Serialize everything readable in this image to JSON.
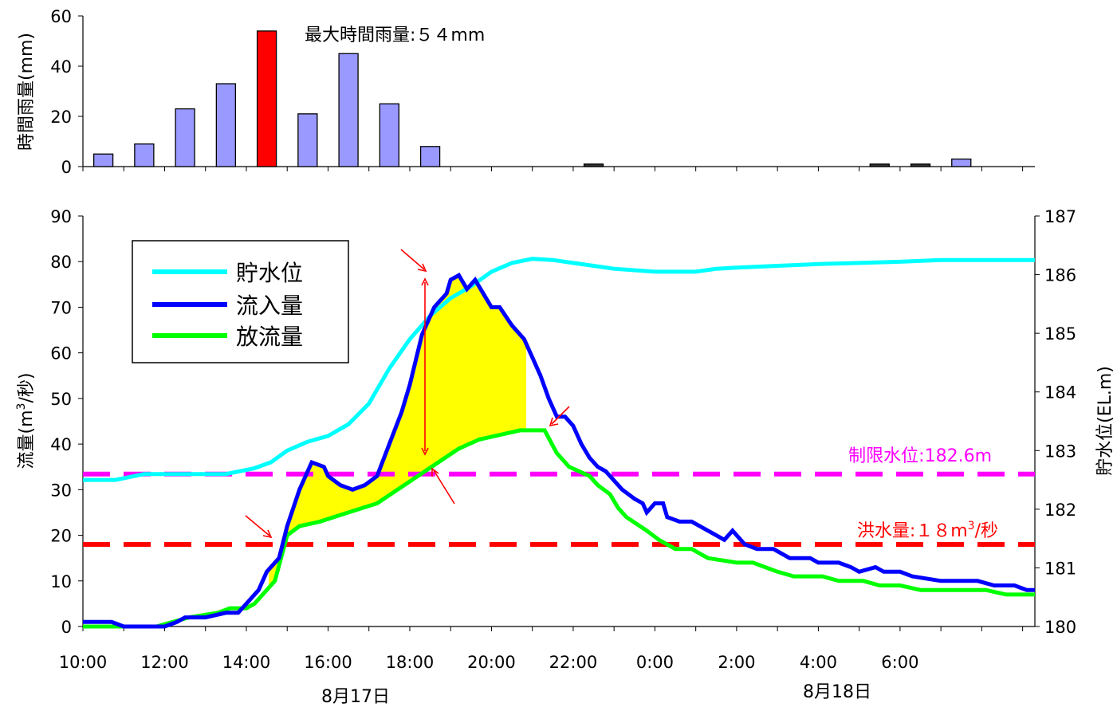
{
  "chart_data": [
    {
      "type": "bar",
      "ylabel": "時間雨量(mm)",
      "ylim": [
        0,
        60
      ],
      "yticks": [
        0,
        20,
        40,
        60
      ],
      "bars": [
        {
          "time": "10:30",
          "value": 5
        },
        {
          "time": "11:30",
          "value": 9
        },
        {
          "time": "12:30",
          "value": 23
        },
        {
          "time": "13:30",
          "value": 33
        },
        {
          "time": "14:30",
          "value": 54,
          "highlight": true
        },
        {
          "time": "15:30",
          "value": 21
        },
        {
          "time": "16:30",
          "value": 45
        },
        {
          "time": "17:30",
          "value": 25
        },
        {
          "time": "18:30",
          "value": 8
        },
        {
          "time": "22:30",
          "value": 1
        },
        {
          "time": "5:30",
          "value": 1
        },
        {
          "time": "6:30",
          "value": 1
        },
        {
          "time": "7:30",
          "value": 3
        }
      ],
      "bar_color": "#9999ff",
      "highlight_color": "#ff0000",
      "annotation": "最大時間雨量:５４mm"
    },
    {
      "type": "line",
      "ylabel": "流量(m3/秒)",
      "ylabel_parts": [
        "流量(m",
        "3",
        "/秒)"
      ],
      "y2label": "貯水位(EL.m)",
      "ylim": [
        0,
        90
      ],
      "y2lim": [
        180,
        187
      ],
      "yticks": [
        0,
        10,
        20,
        30,
        40,
        50,
        60,
        70,
        80,
        90
      ],
      "y2ticks": [
        180,
        181,
        182,
        183,
        184,
        185,
        186,
        187
      ],
      "xlabels": [
        "10:00",
        "12:00",
        "14:00",
        "16:00",
        "18:00",
        "20:00",
        "22:00",
        "0:00",
        "2:00",
        "4:00",
        "6:00"
      ],
      "date_labels": [
        "8月17日",
        "8月18日"
      ],
      "legend": [
        "貯水位",
        "流入量",
        "放流量"
      ],
      "legend_position": "top-left",
      "colors": {
        "level": "#00ffff",
        "inflow": "#0000ff",
        "outflow": "#00ff00",
        "fill": "#ffff00",
        "limit": "#ff00ff",
        "flood": "#ff0000"
      },
      "limit_level_label": "制限水位:182.6m",
      "limit_level_value": 182.6,
      "flood_label_parts": [
        "洪水量:１８m",
        "3",
        "/秒"
      ],
      "flood_value": 18,
      "series": [
        {
          "name": "流入量",
          "axis": "left",
          "points": [
            [
              10,
              1
            ],
            [
              10.7,
              1
            ],
            [
              11,
              0
            ],
            [
              12,
              0
            ],
            [
              12.3,
              1
            ],
            [
              12.5,
              2
            ],
            [
              13,
              2
            ],
            [
              13.5,
              3
            ],
            [
              13.8,
              3
            ],
            [
              14,
              5
            ],
            [
              14.3,
              8
            ],
            [
              14.5,
              12
            ],
            [
              14.8,
              15
            ],
            [
              15,
              22
            ],
            [
              15.3,
              30
            ],
            [
              15.6,
              36
            ],
            [
              15.9,
              35
            ],
            [
              16,
              33
            ],
            [
              16.3,
              31
            ],
            [
              16.6,
              30
            ],
            [
              16.9,
              31
            ],
            [
              17.2,
              33
            ],
            [
              17.5,
              40
            ],
            [
              17.8,
              47
            ],
            [
              18,
              53
            ],
            [
              18.3,
              64
            ],
            [
              18.6,
              70
            ],
            [
              18.9,
              73
            ],
            [
              19,
              76
            ],
            [
              19.2,
              77
            ],
            [
              19.4,
              74
            ],
            [
              19.6,
              76
            ],
            [
              19.8,
              73
            ],
            [
              20,
              70
            ],
            [
              20.2,
              70
            ],
            [
              20.5,
              66
            ],
            [
              20.8,
              63
            ],
            [
              21,
              59
            ],
            [
              21.2,
              55
            ],
            [
              21.4,
              50
            ],
            [
              21.6,
              46
            ],
            [
              21.8,
              46
            ],
            [
              22,
              44
            ],
            [
              22.2,
              40
            ],
            [
              22.4,
              37
            ],
            [
              22.6,
              35
            ],
            [
              22.8,
              34
            ],
            [
              23,
              32
            ],
            [
              23.2,
              30
            ],
            [
              23.5,
              28
            ],
            [
              23.7,
              27
            ],
            [
              23.8,
              25
            ],
            [
              24,
              27
            ],
            [
              24.2,
              27
            ],
            [
              24.3,
              24
            ],
            [
              24.6,
              23
            ],
            [
              24.9,
              23
            ],
            [
              25.3,
              21
            ],
            [
              25.5,
              20
            ],
            [
              25.7,
              19
            ],
            [
              25.9,
              21
            ],
            [
              26.2,
              18
            ],
            [
              26.5,
              17
            ],
            [
              26.9,
              17
            ],
            [
              27.3,
              15
            ],
            [
              27.8,
              15
            ],
            [
              28,
              14
            ],
            [
              28.5,
              14
            ],
            [
              28.8,
              13
            ],
            [
              29,
              12
            ],
            [
              29.4,
              13
            ],
            [
              29.6,
              12
            ],
            [
              30,
              12
            ],
            [
              30.3,
              11
            ],
            [
              31,
              10
            ],
            [
              31.9,
              10
            ],
            [
              32.3,
              9
            ],
            [
              32.8,
              9
            ],
            [
              33.1,
              8
            ],
            [
              33.3,
              8
            ]
          ]
        },
        {
          "name": "放流量",
          "axis": "left",
          "points": [
            [
              10,
              0
            ],
            [
              11.8,
              0
            ],
            [
              12.2,
              1
            ],
            [
              12.6,
              2
            ],
            [
              13.3,
              3
            ],
            [
              13.6,
              4
            ],
            [
              14,
              4
            ],
            [
              14.2,
              5
            ],
            [
              14.5,
              8
            ],
            [
              14.7,
              10
            ],
            [
              15,
              20
            ],
            [
              15.3,
              22
            ],
            [
              15.8,
              23
            ],
            [
              16.5,
              25
            ],
            [
              17.2,
              27
            ],
            [
              17.7,
              30
            ],
            [
              18.2,
              33
            ],
            [
              18.7,
              36
            ],
            [
              19.2,
              39
            ],
            [
              19.7,
              41
            ],
            [
              20.2,
              42
            ],
            [
              20.7,
              43
            ],
            [
              21.3,
              43
            ],
            [
              21.6,
              38
            ],
            [
              21.9,
              35
            ],
            [
              22.4,
              33
            ],
            [
              22.6,
              31
            ],
            [
              22.9,
              29
            ],
            [
              23.1,
              26
            ],
            [
              23.3,
              24
            ],
            [
              23.8,
              21
            ],
            [
              24.1,
              19
            ],
            [
              24.5,
              17
            ],
            [
              24.9,
              17
            ],
            [
              25.3,
              15
            ],
            [
              26,
              14
            ],
            [
              26.4,
              14
            ],
            [
              26.7,
              13
            ],
            [
              27,
              12
            ],
            [
              27.4,
              11
            ],
            [
              28.1,
              11
            ],
            [
              28.5,
              10
            ],
            [
              29.1,
              10
            ],
            [
              29.5,
              9
            ],
            [
              30,
              9
            ],
            [
              30.5,
              8
            ],
            [
              31,
              8
            ],
            [
              31.6,
              8
            ],
            [
              32.1,
              8
            ],
            [
              32.6,
              7
            ],
            [
              33.3,
              7
            ]
          ]
        },
        {
          "name": "貯水位",
          "axis": "right",
          "points": [
            [
              10,
              182.5
            ],
            [
              10.8,
              182.5
            ],
            [
              11.5,
              182.6
            ],
            [
              12.5,
              182.6
            ],
            [
              13.5,
              182.6
            ],
            [
              14.2,
              182.7
            ],
            [
              14.6,
              182.8
            ],
            [
              15,
              183.0
            ],
            [
              15.5,
              183.15
            ],
            [
              16,
              183.25
            ],
            [
              16.5,
              183.45
            ],
            [
              17,
              183.8
            ],
            [
              17.5,
              184.4
            ],
            [
              18,
              184.9
            ],
            [
              18.5,
              185.3
            ],
            [
              19,
              185.6
            ],
            [
              19.5,
              185.8
            ],
            [
              20,
              186.05
            ],
            [
              20.5,
              186.2
            ],
            [
              21,
              186.27
            ],
            [
              21.5,
              186.25
            ],
            [
              22,
              186.2
            ],
            [
              22.5,
              186.15
            ],
            [
              23,
              186.1
            ],
            [
              24,
              186.05
            ],
            [
              25,
              186.05
            ],
            [
              25.5,
              186.1
            ],
            [
              26,
              186.12
            ],
            [
              27,
              186.15
            ],
            [
              28,
              186.18
            ],
            [
              29,
              186.2
            ],
            [
              30,
              186.22
            ],
            [
              31,
              186.25
            ],
            [
              33.3,
              186.25
            ]
          ]
        }
      ]
    }
  ]
}
